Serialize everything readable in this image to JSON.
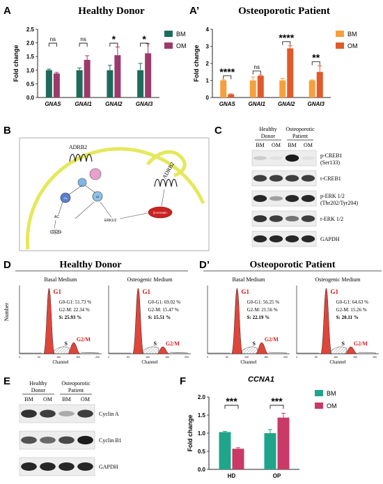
{
  "panels": {
    "A": {
      "letter": "A",
      "title": "Healthy Donor"
    },
    "A2": {
      "letter": "A’",
      "title": "Osteoporotic Patient"
    },
    "B": {
      "letter": "B"
    },
    "C": {
      "letter": "C"
    },
    "D": {
      "letter": "D",
      "title": "Healthy Donor"
    },
    "D2": {
      "letter": "D’",
      "title": "Osteoporotic Patient"
    },
    "E": {
      "letter": "E"
    },
    "F": {
      "letter": "F"
    }
  },
  "chart_data": [
    {
      "id": "A",
      "type": "bar",
      "title": "Healthy Donor",
      "ylabel": "Fold change",
      "ylim": [
        0,
        2.5
      ],
      "yticks": [
        0.0,
        0.5,
        1.0,
        1.5,
        2.0,
        2.5
      ],
      "categories": [
        "GNAS",
        "GNAI1",
        "GNAI2",
        "GNAI3"
      ],
      "series": [
        {
          "name": "BM",
          "color": "#1e6b5a",
          "values": [
            1.0,
            1.0,
            1.0,
            1.0
          ],
          "errors": [
            0.04,
            0.08,
            0.18,
            0.25
          ]
        },
        {
          "name": "OM",
          "color": "#9c3a6c",
          "values": [
            0.88,
            1.38,
            1.55,
            1.62
          ],
          "errors": [
            0.04,
            0.15,
            0.3,
            0.35
          ]
        }
      ],
      "significance": [
        "ns",
        "ns",
        "*",
        "*"
      ]
    },
    {
      "id": "A2",
      "type": "bar",
      "title": "Osteoporotic Patient",
      "ylabel": "Fold change",
      "ylim": [
        0,
        4
      ],
      "yticks": [
        0,
        1,
        2,
        3,
        4
      ],
      "categories": [
        "GNAS",
        "GNAI1",
        "GNAI2",
        "GNAI3"
      ],
      "series": [
        {
          "name": "BM",
          "color": "#f5a03c",
          "values": [
            1.0,
            1.0,
            1.0,
            1.0
          ],
          "errors": [
            0.03,
            0.2,
            0.12,
            0.03
          ]
        },
        {
          "name": "OM",
          "color": "#e05a2a",
          "values": [
            0.18,
            1.27,
            2.88,
            1.5
          ],
          "errors": [
            0.03,
            0.04,
            0.15,
            0.35
          ]
        }
      ],
      "significance": [
        "****",
        "ns",
        "****",
        "**"
      ]
    },
    {
      "id": "F",
      "type": "bar",
      "title": "CCNA1",
      "ylabel": "Fold change",
      "ylim": [
        0,
        2.0
      ],
      "yticks": [
        0.0,
        0.5,
        1.0,
        1.5,
        2.0
      ],
      "categories": [
        "HD",
        "OP"
      ],
      "series": [
        {
          "name": "BM",
          "color": "#1fa58a",
          "values": [
            1.03,
            1.0
          ],
          "errors": [
            0.02,
            0.1
          ]
        },
        {
          "name": "OM",
          "color": "#c93a66",
          "values": [
            0.57,
            1.43
          ],
          "errors": [
            0.03,
            0.12
          ]
        }
      ],
      "significance": [
        "***",
        "***"
      ]
    }
  ],
  "diagram": {
    "receptor1": "ADRB2",
    "receptor2": "ADRB2",
    "gs": "Gs",
    "gi": "Gi",
    "ac": "AC",
    "creb": "CREB1",
    "erk": "ERK1/2",
    "arrestin": "β-Arrestin"
  },
  "blot_c": {
    "group1": [
      "Healthy",
      "Donor"
    ],
    "group2": [
      "Osteoporotic",
      "Patient"
    ],
    "lanes": [
      "BM",
      "OM",
      "BM",
      "OM"
    ],
    "rows": [
      {
        "label": "p-CREB1 (Ser133)",
        "band": [
          0.15,
          0.05,
          0.95,
          0.05
        ]
      },
      {
        "label": "t-CREB1",
        "band": [
          0.8,
          0.8,
          0.8,
          0.8
        ]
      },
      {
        "label": "p-ERK 1/2 (Thr202/Tyr204)",
        "band": [
          0.9,
          0.35,
          0.9,
          0.9
        ]
      },
      {
        "label": "t-ERK 1/2",
        "band": [
          0.85,
          0.8,
          0.55,
          0.8
        ]
      },
      {
        "label": "GAPDH",
        "band": [
          0.9,
          0.9,
          0.9,
          0.9
        ]
      }
    ]
  },
  "flow": {
    "ylabel": "Number",
    "xlabel": "Channel",
    "xticks": [
      "0",
      "50",
      "100",
      "150",
      "200"
    ],
    "conditions": [
      {
        "title": "Basal Medium",
        "g1": "G0-G1: 51.73 %",
        "g2m": "G2-M: 22.34 %",
        "s": "S: 25.93 %"
      },
      {
        "title": "Osteogenic Medium",
        "g1": "G0-G1: 69.02 %",
        "g2m": "G2-M: 15.47 %",
        "s": "S: 15.51 %"
      },
      {
        "title": "Basal Medium",
        "g1": "G0-G1: 56.25 %",
        "g2m": "G2-M: 21.56 %",
        "s": "S: 22.19 %"
      },
      {
        "title": "Osteogenic Medium",
        "g1": "G0-G1: 64.63 %",
        "g2m": "G2-M: 15.26 %",
        "s": "S: 20.11 %"
      }
    ],
    "peak_g1": "G1",
    "peak_s": "S",
    "peak_g2m": "G2/M"
  },
  "blot_e": {
    "group1": [
      "Healthy",
      "Donor"
    ],
    "group2": [
      "Osteoporotic",
      "Patient"
    ],
    "lanes": [
      "BM",
      "OM",
      "BM",
      "OM"
    ],
    "rows": [
      {
        "label": "Cyclin A",
        "band": [
          0.85,
          0.8,
          0.3,
          0.8
        ]
      },
      {
        "label": "Cyclin B1",
        "band": [
          0.7,
          0.6,
          0.75,
          0.95
        ]
      },
      {
        "label": "GAPDH",
        "band": [
          0.9,
          0.9,
          0.9,
          0.9
        ]
      }
    ]
  }
}
